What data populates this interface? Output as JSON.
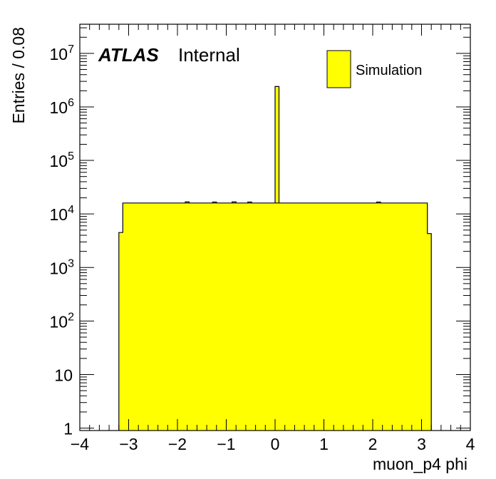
{
  "chart_data": {
    "type": "histogram",
    "xlabel": "muon_p4 phi",
    "ylabel": "Entries / 0.08",
    "xlim": [
      -4,
      4
    ],
    "ylim": [
      0.9,
      35000000
    ],
    "log_y": true,
    "bin_width": 0.08,
    "x_ticks": [
      -4,
      -3,
      -2,
      -1,
      0,
      1,
      2,
      3,
      4
    ],
    "x_tick_labels": [
      "−4",
      "−3",
      "−2",
      "−1",
      "0",
      "1",
      "2",
      "3",
      "4"
    ],
    "y_ticks": [
      {
        "value": 1,
        "base": "1",
        "exp": ""
      },
      {
        "value": 10,
        "base": "10",
        "exp": ""
      },
      {
        "value": 100,
        "base": "10",
        "exp": "2"
      },
      {
        "value": 1000,
        "base": "10",
        "exp": "3"
      },
      {
        "value": 10000,
        "base": "10",
        "exp": "4"
      },
      {
        "value": 100000,
        "base": "10",
        "exp": "5"
      },
      {
        "value": 1000000,
        "base": "10",
        "exp": "6"
      },
      {
        "value": 10000000,
        "base": "10",
        "exp": "7"
      }
    ],
    "series": [
      {
        "name": "Simulation",
        "color": "#ffff00",
        "edge_color": "#000000",
        "bins": [
          {
            "x0": -3.2,
            "x1": -3.12,
            "value": 4500
          },
          {
            "x0": -3.12,
            "x1": 3.12,
            "value": 16000
          },
          {
            "x0": 3.12,
            "x1": 3.2,
            "value": 4300
          }
        ],
        "peaks": [
          {
            "x0": 0.0,
            "x1": 0.08,
            "value": 2400000
          },
          {
            "x0": -1.84,
            "x1": -1.76,
            "value": 16800
          },
          {
            "x0": -1.28,
            "x1": -1.2,
            "value": 16700
          },
          {
            "x0": -0.88,
            "x1": -0.8,
            "value": 16800
          },
          {
            "x0": -0.56,
            "x1": -0.48,
            "value": 16700
          },
          {
            "x0": 2.08,
            "x1": 2.16,
            "value": 16700
          }
        ]
      }
    ],
    "grid": false,
    "legend_position": "top-right"
  },
  "annotation": {
    "atlas": "ATLAS",
    "status": "Internal"
  },
  "legend": {
    "entries": [
      {
        "label": "Simulation",
        "color": "#ffff00"
      }
    ]
  }
}
